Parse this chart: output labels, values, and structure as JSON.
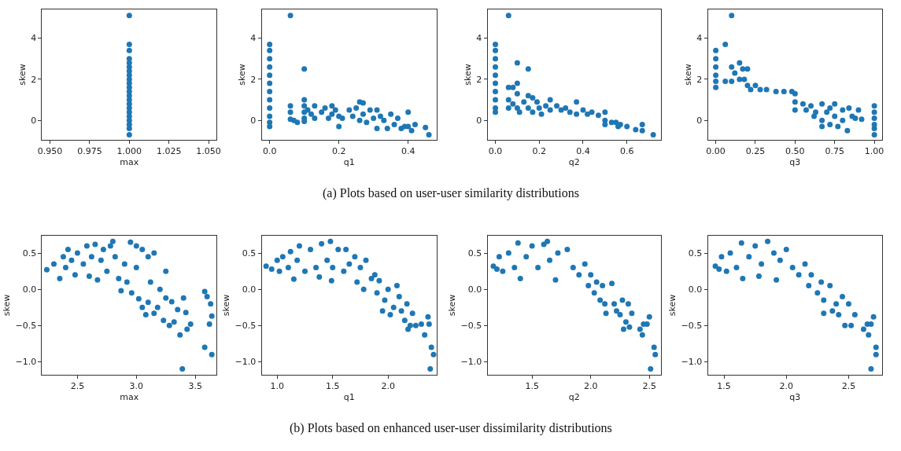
{
  "chart_data": [
    {
      "type": "scatter",
      "xlabel": "max",
      "ylabel": "skew",
      "color": "#1f77b4",
      "marker": "circle",
      "annotations": [
        "(a) Plots based on user-user similarity distributions"
      ],
      "xlim": [
        0.945,
        1.055
      ],
      "ylim": [
        -0.95,
        5.4
      ],
      "xticks": [
        {
          "value": 0.95,
          "label": "0.950"
        },
        {
          "value": 0.975,
          "label": "0.975"
        },
        {
          "value": 1.0,
          "label": "1.000"
        },
        {
          "value": 1.025,
          "label": "1.025"
        },
        {
          "value": 1.05,
          "label": "1.050"
        }
      ],
      "yticks": [
        0,
        2,
        4
      ],
      "x": [
        1,
        1,
        1,
        1,
        1,
        1,
        1,
        1,
        1,
        1,
        1,
        1,
        1,
        1,
        1,
        1,
        1,
        1,
        1,
        1,
        1,
        1
      ],
      "values": [
        5.1,
        3.7,
        3.4,
        3.0,
        2.8,
        2.6,
        2.4,
        2.2,
        2.0,
        1.8,
        1.6,
        1.4,
        1.2,
        1.0,
        0.8,
        0.6,
        0.4,
        0.2,
        0.0,
        -0.2,
        -0.4,
        -0.7
      ]
    },
    {
      "type": "scatter",
      "xlabel": "q1",
      "ylabel": "skew",
      "color": "#1f77b4",
      "marker": "circle",
      "xlim": [
        -0.023,
        0.483
      ],
      "ylim": [
        -0.95,
        5.4
      ],
      "xticks": [
        {
          "value": 0,
          "label": "0.0"
        },
        {
          "value": 0.2,
          "label": "0.2"
        },
        {
          "value": 0.4,
          "label": "0.4"
        }
      ],
      "yticks": [
        0,
        2,
        4
      ],
      "x": [
        0,
        0,
        0,
        0,
        0,
        0,
        0,
        0,
        0,
        0,
        0,
        0,
        0.06,
        0.1,
        0.06,
        0.06,
        0.06,
        0.07,
        0.08,
        0.1,
        0.1,
        0.1,
        0.1,
        0.1,
        0.11,
        0.12,
        0.13,
        0.13,
        0.15,
        0.16,
        0.17,
        0.18,
        0.18,
        0.19,
        0.2,
        0.2,
        0.21,
        0.23,
        0.24,
        0.25,
        0.26,
        0.26,
        0.27,
        0.27,
        0.28,
        0.29,
        0.3,
        0.31,
        0.31,
        0.32,
        0.33,
        0.34,
        0.35,
        0.36,
        0.37,
        0.38,
        0.39,
        0.4,
        0.4,
        0.41,
        0.42,
        0.45,
        0.46
      ],
      "values": [
        3.7,
        3.4,
        3.0,
        2.6,
        2.2,
        1.8,
        1.4,
        1.0,
        0.6,
        0.2,
        -0.1,
        -0.3,
        5.1,
        2.5,
        0.7,
        0.4,
        0.05,
        0.0,
        -0.1,
        1.0,
        0.7,
        0.4,
        0.1,
        -0.05,
        0.5,
        0.3,
        0.7,
        0.1,
        0.4,
        0.6,
        0.1,
        0.7,
        0.3,
        0.5,
        0.2,
        -0.3,
        0.1,
        0.5,
        0.2,
        0.6,
        0.9,
        0.0,
        0.3,
        0.85,
        -0.1,
        0.5,
        0.1,
        -0.4,
        0.5,
        0.2,
        0.0,
        -0.4,
        0.3,
        -0.2,
        0.1,
        -0.4,
        -0.3,
        0.4,
        -0.3,
        -0.5,
        -0.2,
        -0.35,
        -0.7
      ]
    },
    {
      "type": "scatter",
      "xlabel": "q2",
      "ylabel": "skew",
      "color": "#1f77b4",
      "marker": "circle",
      "xlim": [
        -0.036,
        0.756
      ],
      "ylim": [
        -0.95,
        5.4
      ],
      "xticks": [
        {
          "value": 0,
          "label": "0.0"
        },
        {
          "value": 0.2,
          "label": "0.2"
        },
        {
          "value": 0.4,
          "label": "0.4"
        },
        {
          "value": 0.6,
          "label": "0.6"
        }
      ],
      "yticks": [
        0,
        2,
        4
      ],
      "x": [
        0,
        0,
        0,
        0,
        0,
        0,
        0,
        0,
        0,
        0,
        0.06,
        0.1,
        0.15,
        0.06,
        0.08,
        0.1,
        0.06,
        0.06,
        0.08,
        0.1,
        0.1,
        0.11,
        0.13,
        0.15,
        0.15,
        0.17,
        0.17,
        0.19,
        0.2,
        0.21,
        0.23,
        0.25,
        0.25,
        0.28,
        0.3,
        0.32,
        0.34,
        0.37,
        0.37,
        0.4,
        0.42,
        0.44,
        0.47,
        0.5,
        0.5,
        0.5,
        0.53,
        0.55,
        0.56,
        0.57,
        0.6,
        0.64,
        0.67,
        0.67,
        0.72
      ],
      "values": [
        3.7,
        3.4,
        3.0,
        2.6,
        2.2,
        1.8,
        1.4,
        1.0,
        0.6,
        0.4,
        5.1,
        2.8,
        2.5,
        1.6,
        1.6,
        1.8,
        1.0,
        0.6,
        0.8,
        1.3,
        0.6,
        0.4,
        0.9,
        1.2,
        0.6,
        1.1,
        0.4,
        0.9,
        0.6,
        0.3,
        0.7,
        1.0,
        0.5,
        0.7,
        0.5,
        0.6,
        0.4,
        0.9,
        0.3,
        0.5,
        0.3,
        0.4,
        0.25,
        0.4,
        0.0,
        -0.2,
        -0.1,
        -0.1,
        -0.3,
        -0.2,
        -0.3,
        -0.45,
        -0.2,
        -0.5,
        -0.7
      ]
    },
    {
      "type": "scatter",
      "xlabel": "q3",
      "ylabel": "skew",
      "color": "#1f77b4",
      "marker": "circle",
      "xlim": [
        -0.05,
        1.05
      ],
      "ylim": [
        -0.95,
        5.4
      ],
      "xticks": [
        {
          "value": 0,
          "label": "0.00"
        },
        {
          "value": 0.25,
          "label": "0.25"
        },
        {
          "value": 0.5,
          "label": "0.50"
        },
        {
          "value": 0.75,
          "label": "0.75"
        },
        {
          "value": 1,
          "label": "1.00"
        }
      ],
      "yticks": [
        0,
        2,
        4
      ],
      "x": [
        0,
        0,
        0,
        0,
        0,
        0,
        0.1,
        0.06,
        0.06,
        0.1,
        0.1,
        0.12,
        0.15,
        0.15,
        0.17,
        0.18,
        0.2,
        0.2,
        0.22,
        0.25,
        0.28,
        0.32,
        0.38,
        0.43,
        0.48,
        0.5,
        0.5,
        0.5,
        0.55,
        0.57,
        0.6,
        0.62,
        0.63,
        0.67,
        0.67,
        0.67,
        0.7,
        0.72,
        0.72,
        0.75,
        0.75,
        0.77,
        0.8,
        0.8,
        0.83,
        0.84,
        0.86,
        0.88,
        0.9,
        0.92,
        1,
        1,
        1,
        1,
        1,
        1
      ],
      "values": [
        3.4,
        3.0,
        2.6,
        2.2,
        1.9,
        1.6,
        5.1,
        3.7,
        1.9,
        2.6,
        1.9,
        2.3,
        2.8,
        2.0,
        2.5,
        2.0,
        2.5,
        1.7,
        1.5,
        1.7,
        1.5,
        1.5,
        1.4,
        1.4,
        1.4,
        1.3,
        0.9,
        0.5,
        0.8,
        0.5,
        0.7,
        0.2,
        0.4,
        0.8,
        0.0,
        -0.3,
        0.4,
        0.6,
        -0.2,
        0.8,
        0.2,
        -0.3,
        0.5,
        0.0,
        -0.5,
        0.6,
        0.2,
        0.1,
        0.5,
        0.05,
        0.7,
        0.4,
        0.1,
        -0.2,
        -0.4,
        -0.7
      ]
    },
    {
      "type": "scatter",
      "xlabel": "max",
      "ylabel": "skew",
      "color": "#1f77b4",
      "marker": "circle",
      "annotations": [
        "(b) Plots based on enhanced user-user dissimilarity distributions"
      ],
      "xlim": [
        2.2,
        3.68
      ],
      "ylim": [
        -1.18,
        0.74
      ],
      "xticks": [
        2.5,
        {
          "value": 3,
          "label": "3.0"
        },
        3.5
      ],
      "yticks": [
        {
          "value": -1,
          "label": "−1.0"
        },
        {
          "value": -0.5,
          "label": "−0.5"
        },
        {
          "value": 0,
          "label": "0.0"
        },
        {
          "value": 0.5,
          "label": "0.5"
        }
      ],
      "x": [
        2.24,
        2.3,
        2.35,
        2.38,
        2.4,
        2.42,
        2.45,
        2.48,
        2.5,
        2.55,
        2.58,
        2.6,
        2.62,
        2.65,
        2.67,
        2.7,
        2.72,
        2.75,
        2.78,
        2.8,
        2.82,
        2.85,
        2.87,
        2.9,
        2.92,
        2.95,
        2.96,
        3.0,
        3.0,
        3.02,
        3.05,
        3.05,
        3.08,
        3.1,
        3.1,
        3.12,
        3.15,
        3.15,
        3.18,
        3.2,
        3.23,
        3.25,
        3.25,
        3.28,
        3.3,
        3.32,
        3.35,
        3.37,
        3.39,
        3.4,
        3.42,
        3.43,
        3.46,
        3.58,
        3.6,
        3.58,
        3.63,
        3.62,
        3.64,
        3.64
      ],
      "values": [
        0.27,
        0.35,
        0.15,
        0.45,
        0.3,
        0.55,
        0.4,
        0.2,
        0.5,
        0.35,
        0.6,
        0.18,
        0.45,
        0.62,
        0.13,
        0.4,
        0.55,
        0.25,
        0.6,
        0.66,
        0.45,
        0.15,
        -0.02,
        0.35,
        0.1,
        0.65,
        -0.05,
        0.6,
        0.3,
        -0.13,
        0.55,
        -0.25,
        -0.35,
        0.45,
        -0.18,
        0.1,
        0.5,
        -0.33,
        -0.25,
        0.0,
        -0.43,
        0.25,
        -0.12,
        -0.5,
        -0.17,
        -0.45,
        -0.28,
        -0.63,
        -1.1,
        -0.12,
        -0.32,
        -0.55,
        -0.48,
        -0.03,
        -0.1,
        -0.8,
        -0.2,
        -0.48,
        -0.37,
        -0.9
      ]
    },
    {
      "type": "scatter",
      "xlabel": "q1",
      "ylabel": "skew",
      "color": "#1f77b4",
      "marker": "circle",
      "xlim": [
        0.86,
        2.44
      ],
      "ylim": [
        -1.18,
        0.74
      ],
      "xticks": [
        {
          "value": 1,
          "label": "1.0"
        },
        1.5,
        {
          "value": 2,
          "label": "2.0"
        }
      ],
      "yticks": [
        {
          "value": -1,
          "label": "−1.0"
        },
        {
          "value": -0.5,
          "label": "−0.5"
        },
        {
          "value": 0,
          "label": "0.0"
        },
        {
          "value": 0.5,
          "label": "0.5"
        }
      ],
      "x": [
        0.9,
        0.95,
        1.0,
        1.02,
        1.05,
        1.1,
        1.12,
        1.15,
        1.18,
        1.2,
        1.25,
        1.3,
        1.35,
        1.38,
        1.4,
        1.45,
        1.48,
        1.49,
        1.5,
        1.55,
        1.6,
        1.62,
        1.65,
        1.7,
        1.72,
        1.75,
        1.78,
        1.8,
        1.85,
        1.88,
        1.9,
        1.92,
        1.95,
        1.97,
        2.0,
        2.02,
        2.05,
        2.08,
        2.1,
        2.12,
        2.15,
        2.17,
        2.18,
        2.2,
        2.22,
        2.25,
        2.3,
        2.33,
        2.36,
        2.37,
        2.38,
        2.39,
        2.41
      ],
      "values": [
        0.32,
        0.28,
        0.4,
        0.25,
        0.45,
        0.3,
        0.52,
        0.14,
        0.4,
        0.6,
        0.25,
        0.55,
        0.3,
        0.17,
        0.63,
        0.4,
        0.66,
        0.12,
        0.3,
        0.55,
        0.25,
        0.55,
        0.35,
        0.45,
        0.1,
        0.3,
        0.0,
        0.4,
        0.15,
        0.2,
        -0.05,
        0.12,
        -0.3,
        -0.15,
        0.0,
        -0.35,
        -0.25,
        0.05,
        -0.1,
        -0.3,
        -0.43,
        -0.2,
        -0.55,
        -0.5,
        -0.33,
        -0.5,
        -0.48,
        -0.63,
        -0.38,
        -0.48,
        -1.1,
        -0.8,
        -0.9
      ]
    },
    {
      "type": "scatter",
      "xlabel": "q2",
      "ylabel": "skew",
      "color": "#1f77b4",
      "marker": "circle",
      "xlim": [
        1.12,
        2.6
      ],
      "ylim": [
        -1.18,
        0.74
      ],
      "xticks": [
        1.5,
        {
          "value": 2,
          "label": "2.0"
        },
        2.5
      ],
      "yticks": [
        {
          "value": -1,
          "label": "−1.0"
        },
        {
          "value": -0.5,
          "label": "−0.5"
        },
        {
          "value": 0,
          "label": "0.0"
        },
        {
          "value": 0.5,
          "label": "0.5"
        }
      ],
      "x": [
        1.17,
        1.2,
        1.22,
        1.25,
        1.3,
        1.35,
        1.38,
        1.4,
        1.45,
        1.5,
        1.55,
        1.6,
        1.63,
        1.65,
        1.7,
        1.72,
        1.8,
        1.85,
        1.9,
        1.95,
        1.98,
        2.0,
        2.03,
        2.05,
        2.08,
        2.1,
        2.12,
        2.13,
        2.18,
        2.2,
        2.22,
        2.25,
        2.27,
        2.28,
        2.3,
        2.32,
        2.33,
        2.35,
        2.42,
        2.44,
        2.45,
        2.48,
        2.5,
        2.51,
        2.54,
        2.55
      ],
      "values": [
        0.32,
        0.28,
        0.45,
        0.25,
        0.5,
        0.3,
        0.64,
        0.15,
        0.45,
        0.6,
        0.3,
        0.62,
        0.66,
        0.4,
        0.13,
        0.5,
        0.55,
        0.3,
        0.2,
        0.35,
        0.05,
        0.2,
        -0.05,
        0.1,
        -0.15,
        0.05,
        -0.2,
        -0.33,
        0.08,
        -0.2,
        -0.3,
        -0.35,
        -0.15,
        -0.55,
        -0.45,
        -0.2,
        -0.52,
        -0.33,
        -0.55,
        -0.63,
        -0.48,
        -0.48,
        -0.38,
        -1.1,
        -0.8,
        -0.9
      ]
    },
    {
      "type": "scatter",
      "xlabel": "q3",
      "ylabel": "skew",
      "color": "#1f77b4",
      "marker": "circle",
      "xlim": [
        1.37,
        2.77
      ],
      "ylim": [
        -1.18,
        0.74
      ],
      "xticks": [
        1.5,
        {
          "value": 2,
          "label": "2.0"
        },
        2.5
      ],
      "yticks": [
        {
          "value": -1,
          "label": "−1.0"
        },
        {
          "value": -0.5,
          "label": "−0.5"
        },
        {
          "value": 0,
          "label": "0.0"
        },
        {
          "value": 0.5,
          "label": "0.5"
        }
      ],
      "x": [
        1.43,
        1.46,
        1.48,
        1.52,
        1.55,
        1.6,
        1.64,
        1.65,
        1.7,
        1.75,
        1.78,
        1.8,
        1.85,
        1.9,
        1.92,
        1.95,
        2.0,
        2.05,
        2.1,
        2.15,
        2.18,
        2.2,
        2.25,
        2.28,
        2.3,
        2.3,
        2.35,
        2.37,
        2.4,
        2.42,
        2.45,
        2.47,
        2.5,
        2.52,
        2.55,
        2.62,
        2.65,
        2.66,
        2.68,
        2.7,
        2.68,
        2.72,
        2.72
      ],
      "values": [
        0.32,
        0.28,
        0.45,
        0.25,
        0.5,
        0.3,
        0.64,
        0.15,
        0.45,
        0.6,
        0.18,
        0.35,
        0.66,
        0.5,
        0.13,
        0.4,
        0.55,
        0.3,
        0.2,
        0.35,
        0.05,
        0.2,
        -0.05,
        0.1,
        -0.15,
        -0.33,
        0.05,
        -0.3,
        -0.2,
        -0.35,
        -0.1,
        -0.5,
        -0.2,
        -0.5,
        -0.35,
        -0.55,
        -0.48,
        -0.63,
        -0.48,
        -0.38,
        -1.1,
        -0.8,
        -0.9
      ]
    }
  ]
}
